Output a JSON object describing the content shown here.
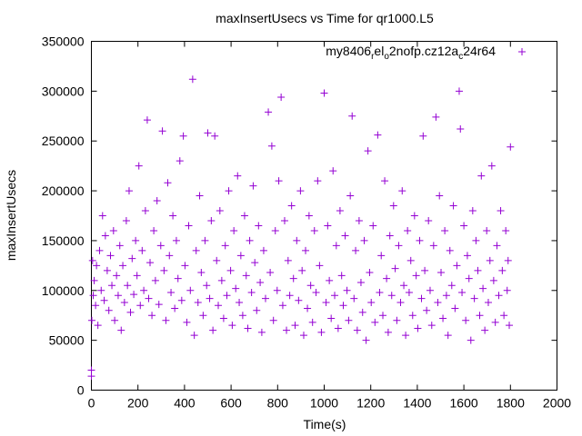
{
  "chart_data": {
    "type": "scatter",
    "title": "maxInsertUsecs vs Time for qr1000.L5",
    "xlabel": "Time(s)",
    "ylabel": "maxInsertUsecs",
    "xlim": [
      0,
      2000
    ],
    "ylim": [
      0,
      350000
    ],
    "xticks": [
      "0",
      "200",
      "400",
      "600",
      "800",
      "1000",
      "1200",
      "1400",
      "1600",
      "1800",
      "2000"
    ],
    "yticks": [
      "0",
      "50000",
      "100000",
      "150000",
      "200000",
      "250000",
      "300000",
      "350000"
    ],
    "grid": false,
    "legend_position": "top-right",
    "series": [
      {
        "name": "my8406_rel_o2nofp.cz12a_c24r64",
        "legend_parts": [
          {
            "t": "my8406",
            "sub": false
          },
          {
            "t": "r",
            "sub": true
          },
          {
            "t": "el",
            "sub": false
          },
          {
            "t": "o",
            "sub": true
          },
          {
            "t": "2nofp.cz12a",
            "sub": false
          },
          {
            "t": "c",
            "sub": true
          },
          {
            "t": "24r64",
            "sub": false
          }
        ],
        "color": "#9400d3",
        "marker": "+",
        "points": [
          [
            0,
            14000
          ],
          [
            0,
            20000
          ],
          [
            2,
            70000
          ],
          [
            5,
            130000
          ],
          [
            8,
            95000
          ],
          [
            12,
            110000
          ],
          [
            18,
            85000
          ],
          [
            22,
            125000
          ],
          [
            28,
            65000
          ],
          [
            35,
            140000
          ],
          [
            42,
            100000
          ],
          [
            48,
            175000
          ],
          [
            55,
            90000
          ],
          [
            60,
            155000
          ],
          [
            68,
            120000
          ],
          [
            75,
            80000
          ],
          [
            82,
            135000
          ],
          [
            88,
            105000
          ],
          [
            95,
            160000
          ],
          [
            100,
            70000
          ],
          [
            108,
            115000
          ],
          [
            115,
            95000
          ],
          [
            122,
            145000
          ],
          [
            128,
            60000
          ],
          [
            135,
            125000
          ],
          [
            142,
            88000
          ],
          [
            150,
            170000
          ],
          [
            155,
            105000
          ],
          [
            162,
            200000
          ],
          [
            168,
            78000
          ],
          [
            175,
            132000
          ],
          [
            182,
            96000
          ],
          [
            190,
            150000
          ],
          [
            196,
            115000
          ],
          [
            204,
            225000
          ],
          [
            210,
            85000
          ],
          [
            218,
            140000
          ],
          [
            225,
            100000
          ],
          [
            232,
            180000
          ],
          [
            240,
            271000
          ],
          [
            246,
            92000
          ],
          [
            252,
            128000
          ],
          [
            260,
            75000
          ],
          [
            268,
            160000
          ],
          [
            275,
            110000
          ],
          [
            282,
            190000
          ],
          [
            290,
            86000
          ],
          [
            298,
            145000
          ],
          [
            305,
            260000
          ],
          [
            312,
            120000
          ],
          [
            320,
            70000
          ],
          [
            328,
            208000
          ],
          [
            335,
            135000
          ],
          [
            342,
            98000
          ],
          [
            350,
            175000
          ],
          [
            358,
            82000
          ],
          [
            365,
            150000
          ],
          [
            372,
            112000
          ],
          [
            380,
            230000
          ],
          [
            388,
            90000
          ],
          [
            395,
            255000
          ],
          [
            402,
            125000
          ],
          [
            410,
            68000
          ],
          [
            418,
            165000
          ],
          [
            425,
            100000
          ],
          [
            435,
            312000
          ],
          [
            442,
            55000
          ],
          [
            450,
            140000
          ],
          [
            458,
            88000
          ],
          [
            465,
            195000
          ],
          [
            472,
            118000
          ],
          [
            480,
            75000
          ],
          [
            488,
            150000
          ],
          [
            495,
            105000
          ],
          [
            500,
            258000
          ],
          [
            508,
            92000
          ],
          [
            515,
            170000
          ],
          [
            522,
            60000
          ],
          [
            530,
            255000
          ],
          [
            538,
            130000
          ],
          [
            545,
            85000
          ],
          [
            552,
            180000
          ],
          [
            560,
            110000
          ],
          [
            568,
            72000
          ],
          [
            575,
            145000
          ],
          [
            582,
            95000
          ],
          [
            590,
            200000
          ],
          [
            598,
            120000
          ],
          [
            605,
            65000
          ],
          [
            612,
            160000
          ],
          [
            620,
            102000
          ],
          [
            628,
            215000
          ],
          [
            635,
            88000
          ],
          [
            642,
            135000
          ],
          [
            650,
            75000
          ],
          [
            658,
            175000
          ],
          [
            665,
            115000
          ],
          [
            672,
            62000
          ],
          [
            680,
            150000
          ],
          [
            688,
            98000
          ],
          [
            695,
            205000
          ],
          [
            702,
            128000
          ],
          [
            710,
            80000
          ],
          [
            718,
            165000
          ],
          [
            725,
            108000
          ],
          [
            732,
            58000
          ],
          [
            740,
            140000
          ],
          [
            748,
            92000
          ],
          [
            760,
            279000
          ],
          [
            768,
            118000
          ],
          [
            775,
            245000
          ],
          [
            782,
            70000
          ],
          [
            790,
            160000
          ],
          [
            798,
            100000
          ],
          [
            805,
            210000
          ],
          [
            815,
            294000
          ],
          [
            822,
            85000
          ],
          [
            830,
            170000
          ],
          [
            838,
            60000
          ],
          [
            845,
            130000
          ],
          [
            852,
            95000
          ],
          [
            860,
            185000
          ],
          [
            868,
            112000
          ],
          [
            875,
            65000
          ],
          [
            882,
            150000
          ],
          [
            890,
            90000
          ],
          [
            898,
            200000
          ],
          [
            905,
            120000
          ],
          [
            912,
            55000
          ],
          [
            920,
            140000
          ],
          [
            928,
            82000
          ],
          [
            935,
            175000
          ],
          [
            942,
            105000
          ],
          [
            950,
            68000
          ],
          [
            958,
            160000
          ],
          [
            965,
            98000
          ],
          [
            972,
            210000
          ],
          [
            980,
            125000
          ],
          [
            988,
            58000
          ],
          [
            1000,
            298000
          ],
          [
            1008,
            88000
          ],
          [
            1015,
            165000
          ],
          [
            1022,
            110000
          ],
          [
            1030,
            72000
          ],
          [
            1038,
            220000
          ],
          [
            1045,
            95000
          ],
          [
            1052,
            145000
          ],
          [
            1060,
            62000
          ],
          [
            1068,
            180000
          ],
          [
            1075,
            115000
          ],
          [
            1082,
            85000
          ],
          [
            1090,
            155000
          ],
          [
            1098,
            100000
          ],
          [
            1105,
            70000
          ],
          [
            1112,
            195000
          ],
          [
            1120,
            275000
          ],
          [
            1128,
            92000
          ],
          [
            1135,
            140000
          ],
          [
            1142,
            60000
          ],
          [
            1150,
            170000
          ],
          [
            1158,
            108000
          ],
          [
            1165,
            78000
          ],
          [
            1172,
            150000
          ],
          [
            1180,
            50000
          ],
          [
            1188,
            240000
          ],
          [
            1195,
            118000
          ],
          [
            1202,
            88000
          ],
          [
            1210,
            165000
          ],
          [
            1218,
            68000
          ],
          [
            1230,
            256000
          ],
          [
            1238,
            98000
          ],
          [
            1245,
            135000
          ],
          [
            1252,
            75000
          ],
          [
            1260,
            210000
          ],
          [
            1268,
            112000
          ],
          [
            1275,
            58000
          ],
          [
            1282,
            155000
          ],
          [
            1290,
            95000
          ],
          [
            1298,
            185000
          ],
          [
            1305,
            122000
          ],
          [
            1312,
            70000
          ],
          [
            1320,
            145000
          ],
          [
            1328,
            88000
          ],
          [
            1335,
            200000
          ],
          [
            1342,
            105000
          ],
          [
            1350,
            55000
          ],
          [
            1358,
            160000
          ],
          [
            1365,
            98000
          ],
          [
            1372,
            130000
          ],
          [
            1380,
            75000
          ],
          [
            1388,
            175000
          ],
          [
            1395,
            115000
          ],
          [
            1402,
            62000
          ],
          [
            1410,
            150000
          ],
          [
            1418,
            92000
          ],
          [
            1425,
            255000
          ],
          [
            1432,
            120000
          ],
          [
            1440,
            80000
          ],
          [
            1448,
            170000
          ],
          [
            1455,
            100000
          ],
          [
            1462,
            65000
          ],
          [
            1470,
            145000
          ],
          [
            1480,
            274000
          ],
          [
            1488,
            88000
          ],
          [
            1495,
            195000
          ],
          [
            1502,
            118000
          ],
          [
            1510,
            72000
          ],
          [
            1518,
            160000
          ],
          [
            1525,
            95000
          ],
          [
            1532,
            55000
          ],
          [
            1540,
            140000
          ],
          [
            1548,
            105000
          ],
          [
            1555,
            185000
          ],
          [
            1562,
            82000
          ],
          [
            1570,
            125000
          ],
          [
            1580,
            300000
          ],
          [
            1585,
            262000
          ],
          [
            1592,
            98000
          ],
          [
            1600,
            165000
          ],
          [
            1608,
            70000
          ],
          [
            1615,
            135000
          ],
          [
            1622,
            112000
          ],
          [
            1630,
            50000
          ],
          [
            1638,
            180000
          ],
          [
            1645,
            92000
          ],
          [
            1652,
            150000
          ],
          [
            1660,
            120000
          ],
          [
            1668,
            75000
          ],
          [
            1675,
            215000
          ],
          [
            1682,
            102000
          ],
          [
            1690,
            60000
          ],
          [
            1698,
            160000
          ],
          [
            1705,
            88000
          ],
          [
            1712,
            130000
          ],
          [
            1720,
            225000
          ],
          [
            1728,
            110000
          ],
          [
            1735,
            68000
          ],
          [
            1742,
            145000
          ],
          [
            1750,
            95000
          ],
          [
            1758,
            180000
          ],
          [
            1765,
            120000
          ],
          [
            1772,
            75000
          ],
          [
            1780,
            160000
          ],
          [
            1786,
            100000
          ],
          [
            1790,
            130000
          ],
          [
            1795,
            65000
          ],
          [
            1800,
            244000
          ]
        ]
      }
    ]
  }
}
